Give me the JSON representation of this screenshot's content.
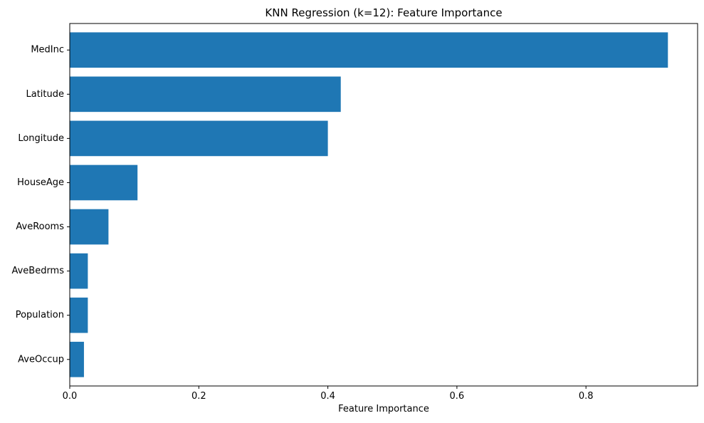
{
  "chart_data": {
    "type": "bar",
    "orientation": "horizontal",
    "title": "KNN Regression (k=12): Feature Importance",
    "xlabel": "Feature Importance",
    "ylabel": "",
    "categories": [
      "MedInc",
      "Latitude",
      "Longitude",
      "HouseAge",
      "AveRooms",
      "AveBedrms",
      "Population",
      "AveOccup"
    ],
    "values": [
      0.927,
      0.42,
      0.4,
      0.105,
      0.06,
      0.028,
      0.028,
      0.022
    ],
    "xlim": [
      0,
      0.973
    ],
    "xticks": [
      0,
      0.2,
      0.4,
      0.6,
      0.8
    ],
    "xtick_labels": [
      "0.0",
      "0.2",
      "0.4",
      "0.6",
      "0.8"
    ],
    "bar_color": "#1f77b4",
    "grid": false,
    "legend": false
  }
}
